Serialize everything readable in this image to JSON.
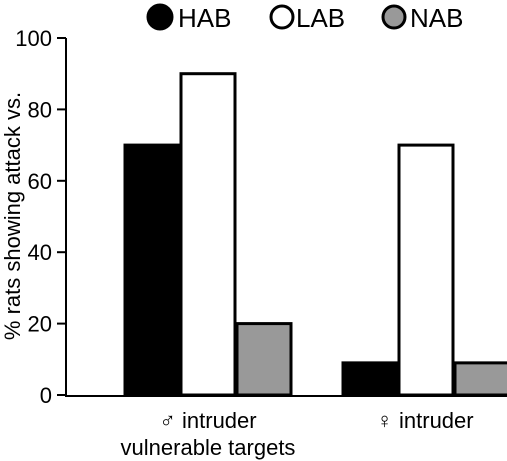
{
  "chart_data": {
    "type": "bar",
    "title": "",
    "xlabel": "",
    "ylabel": "% rats showing attack vs.",
    "ylim": [
      0,
      100
    ],
    "yticks": [
      0,
      20,
      40,
      60,
      80,
      100
    ],
    "grid": false,
    "legend_position": "top",
    "categories": [
      {
        "lines": [
          "♂ intruder",
          "vulnerable targets"
        ]
      },
      {
        "lines": [
          "♀ intruder"
        ]
      }
    ],
    "series": [
      {
        "name": "HAB",
        "color": "#000000",
        "values": [
          70,
          9
        ]
      },
      {
        "name": "LAB",
        "color": "#ffffff",
        "values": [
          90,
          70
        ]
      },
      {
        "name": "NAB",
        "color": "#999999",
        "values": [
          20,
          9
        ]
      }
    ]
  }
}
